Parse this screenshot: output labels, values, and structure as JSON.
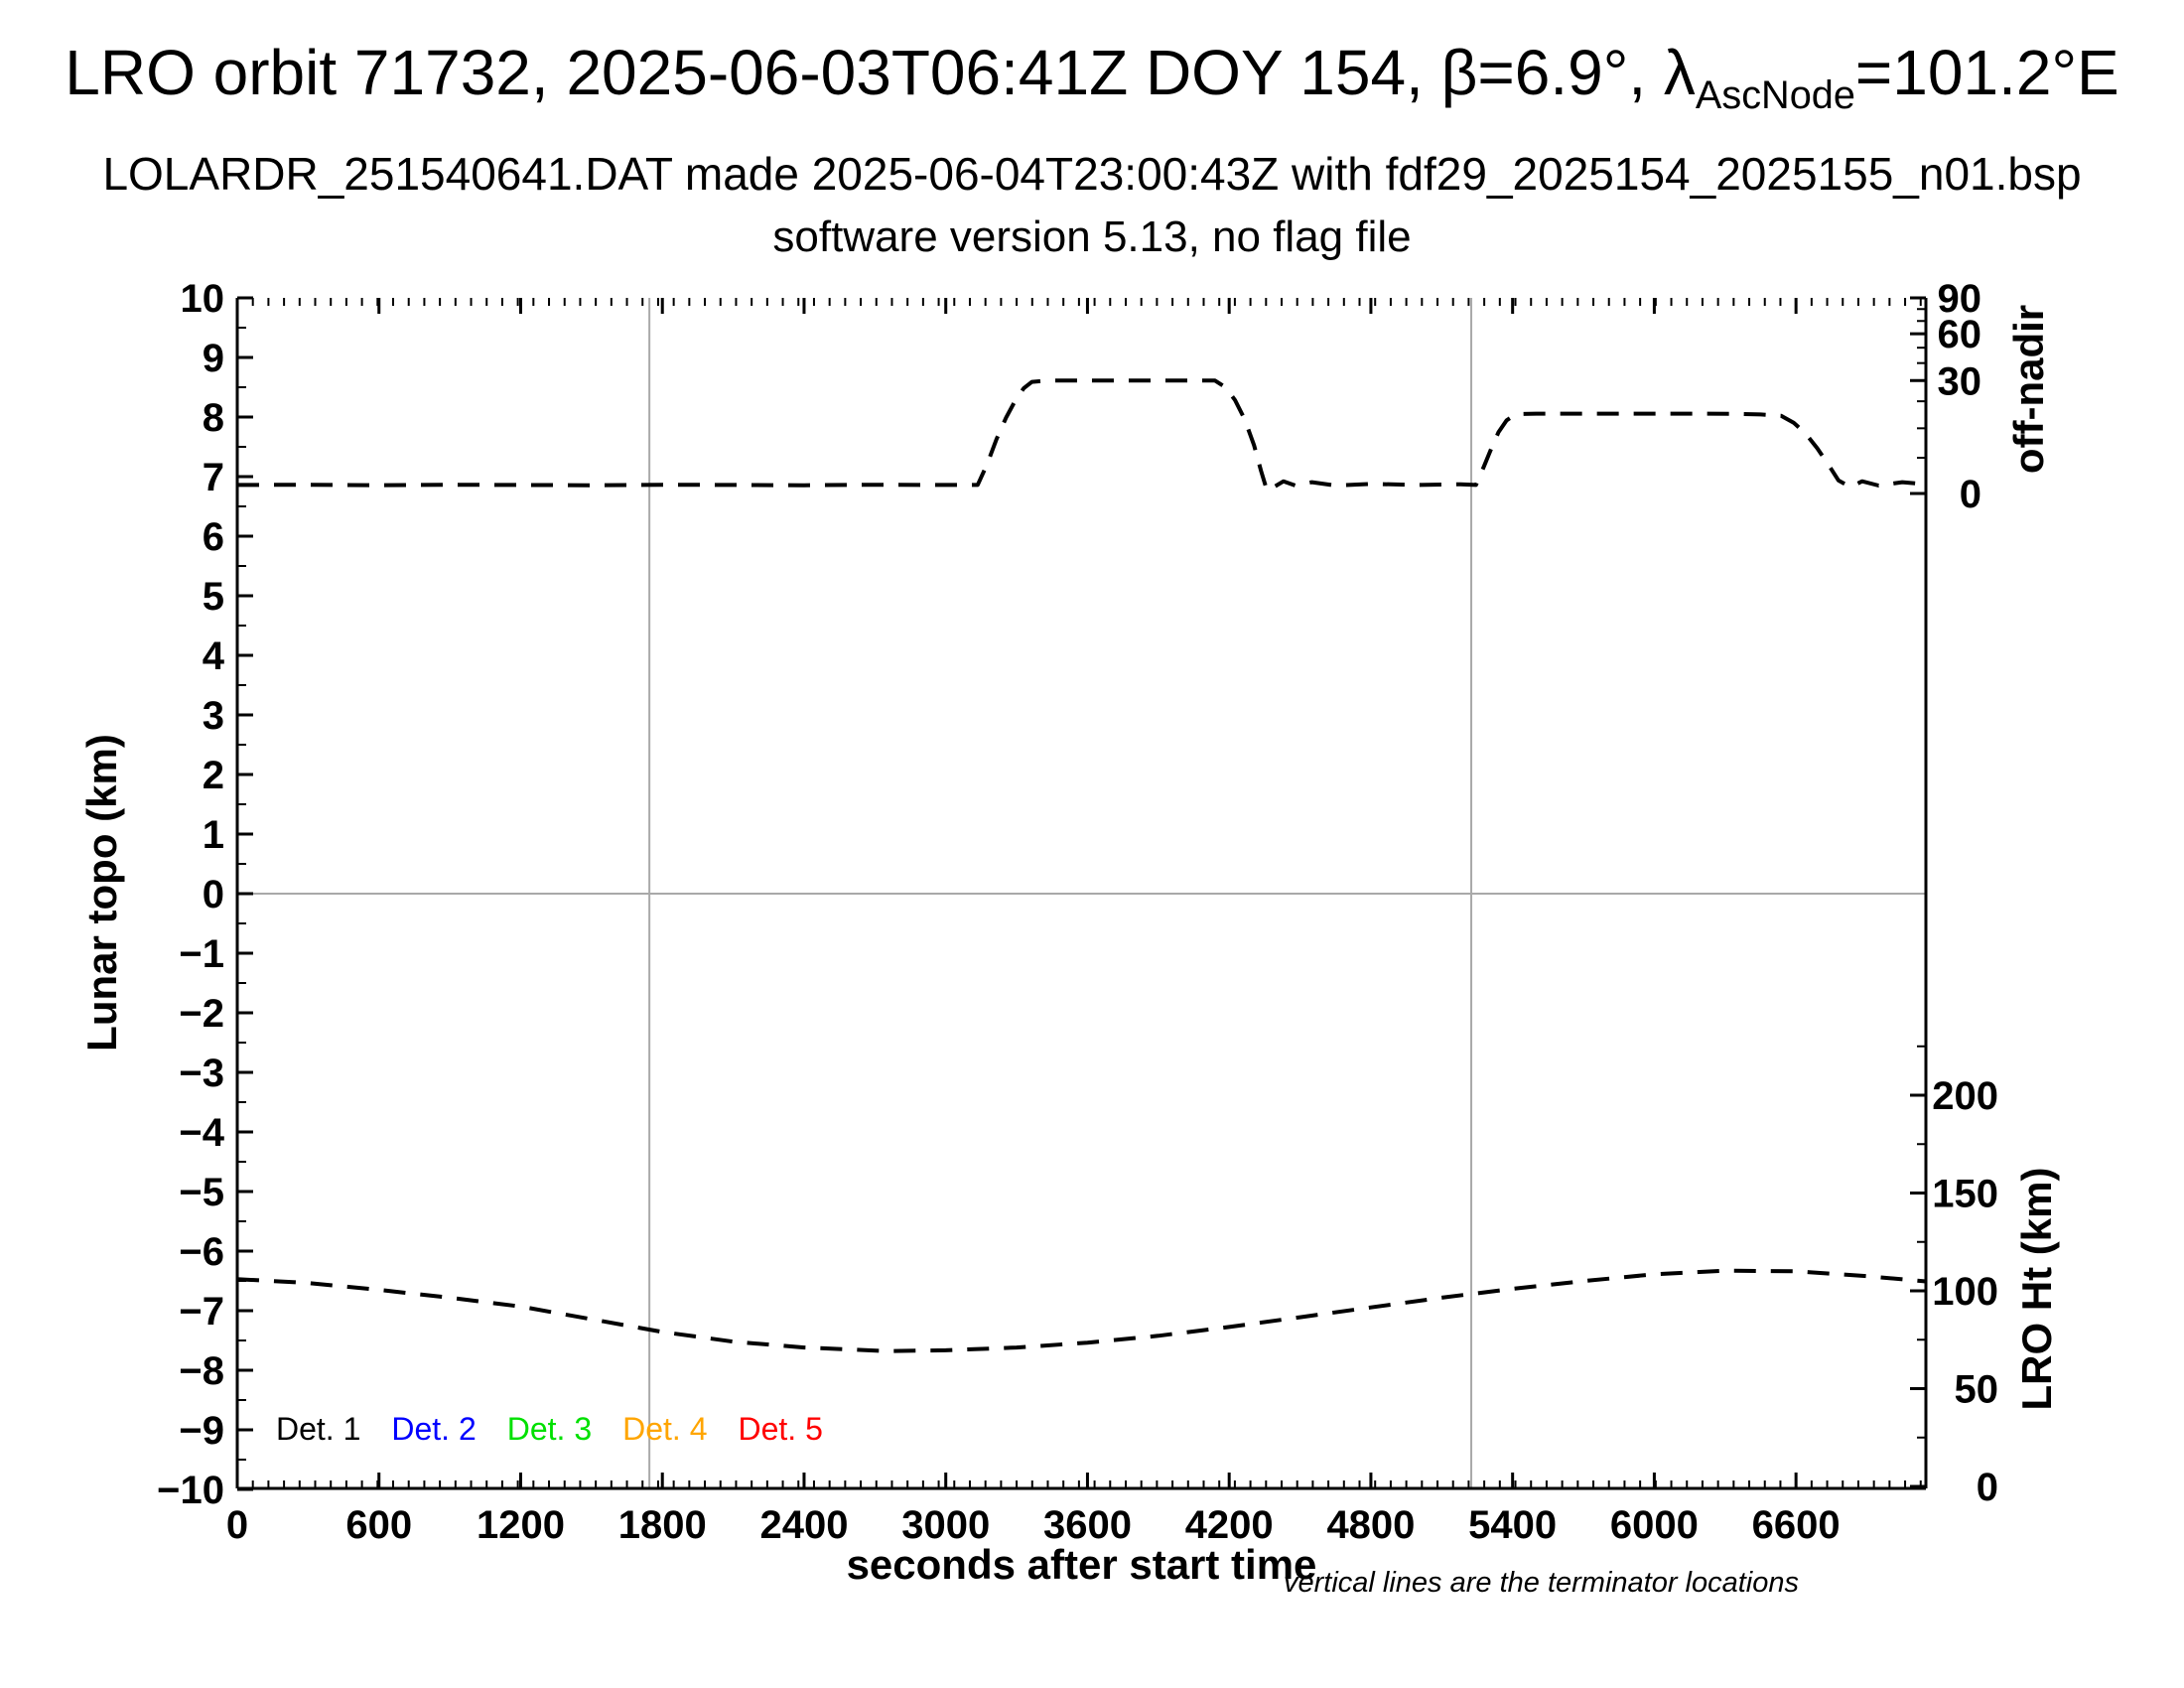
{
  "header": {
    "title_prefix": "LRO orbit 71732, 2025-06-03T06:41Z DOY 154, β=6.9°, λ",
    "title_sub": "AscNode",
    "title_suffix": "=101.2°E",
    "subtitle1": "LOLARDR_251540641.DAT made 2025-06-04T23:00:43Z with fdf29_2025154_2025155_n01.bsp",
    "subtitle2": "software version 5.13, no flag file"
  },
  "axes": {
    "x": {
      "label": "seconds after start time",
      "tick_values": [
        0,
        600,
        1200,
        1800,
        2400,
        3000,
        3600,
        4200,
        4800,
        5400,
        6000,
        6600
      ],
      "minor_step": 66,
      "min": 0,
      "max": 7150
    },
    "y_left": {
      "label": "Lunar topo (km)",
      "min": -10,
      "max": 10,
      "major_step": 1,
      "minor_step": 0.5
    },
    "y_right_top": {
      "label": "off-nadir",
      "tick_values": [
        90,
        60,
        30,
        0
      ],
      "minor_values": [
        3,
        10,
        20,
        40,
        50,
        70,
        80
      ],
      "scale": "sqrt-angle",
      "units": "degrees"
    },
    "y_right_bottom": {
      "label": "LRO Ht (km)",
      "tick_values": [
        200,
        150,
        100,
        50,
        0
      ],
      "minor_step": 25,
      "minor_max": 225
    }
  },
  "legend": {
    "entries": [
      {
        "label": "Det. 1",
        "color": "#000000"
      },
      {
        "label": "Det. 2",
        "color": "#0000ff"
      },
      {
        "label": "Det. 3",
        "color": "#00e000"
      },
      {
        "label": "Det. 4",
        "color": "#ffa500"
      },
      {
        "label": "Det. 5",
        "color": "#ff0000"
      }
    ]
  },
  "note": "vertical lines are the terminator locations",
  "terminator_lines_sec": [
    1745,
    5225
  ],
  "zero_topo_line_km": 0,
  "colors": {
    "grid_gray": "#a9a9a9",
    "curve": "#000000"
  },
  "chart_data": {
    "type": "line",
    "title": "LRO orbit 71732, 2025-06-03T06:41Z DOY 154, β=6.9°, λAscNode=101.2°E",
    "xlabel": "seconds after start time",
    "x_range": [
      0,
      7150
    ],
    "y_left_range_km": [
      -10,
      10
    ],
    "y_right_top_scale": "position proportional to sqrt(angle/90), 0 at 6.68 km topo level, 90 at top",
    "y_right_bottom_scale": "linear, 0 km at plot bottom, ~2px/km",
    "grid": "off",
    "legend_position": "bottom-left inside plot",
    "series": [
      {
        "name": "spacecraft off-nadir angle (deg, right top axis)",
        "style": "dashed",
        "color": "#000000",
        "points": [
          [
            0,
            0.17
          ],
          [
            300,
            0.18
          ],
          [
            600,
            0.16
          ],
          [
            900,
            0.18
          ],
          [
            1200,
            0.17
          ],
          [
            1500,
            0.16
          ],
          [
            1800,
            0.18
          ],
          [
            2100,
            0.17
          ],
          [
            2400,
            0.16
          ],
          [
            2700,
            0.18
          ],
          [
            3000,
            0.17
          ],
          [
            3135,
            0.17
          ],
          [
            3175,
            2
          ],
          [
            3215,
            7
          ],
          [
            3255,
            13.5
          ],
          [
            3295,
            20.5
          ],
          [
            3330,
            26
          ],
          [
            3365,
            29.3
          ],
          [
            3430,
            30
          ],
          [
            3600,
            30
          ],
          [
            3800,
            30
          ],
          [
            4000,
            30
          ],
          [
            4140,
            30
          ],
          [
            4185,
            26.5
          ],
          [
            4225,
            20.5
          ],
          [
            4265,
            13
          ],
          [
            4305,
            5.5
          ],
          [
            4335,
            1.2
          ],
          [
            4360,
            0.02
          ],
          [
            4390,
            0.1
          ],
          [
            4430,
            0.35
          ],
          [
            4480,
            0.15
          ],
          [
            4550,
            0.3
          ],
          [
            4650,
            0.15
          ],
          [
            4800,
            0.22
          ],
          [
            5000,
            0.17
          ],
          [
            5180,
            0.2
          ],
          [
            5245,
            0.17
          ],
          [
            5280,
            1.8
          ],
          [
            5310,
            4.8
          ],
          [
            5340,
            8.8
          ],
          [
            5375,
            12.6
          ],
          [
            5415,
            14.8
          ],
          [
            5500,
            15
          ],
          [
            5700,
            15
          ],
          [
            6000,
            15
          ],
          [
            6200,
            15
          ],
          [
            6350,
            14.9
          ],
          [
            6450,
            14.7
          ],
          [
            6537,
            14.2
          ],
          [
            6590,
            11.8
          ],
          [
            6640,
            8.5
          ],
          [
            6690,
            4.8
          ],
          [
            6740,
            1.8
          ],
          [
            6780,
            0.4
          ],
          [
            6830,
            0.1
          ],
          [
            6880,
            0.35
          ],
          [
            6950,
            0.15
          ],
          [
            7050,
            0.3
          ],
          [
            7150,
            0.2
          ]
        ]
      },
      {
        "name": "LRO height above surface (km, right bottom axis)",
        "style": "dashed",
        "color": "#000000",
        "points": [
          [
            0,
            106
          ],
          [
            300,
            104
          ],
          [
            600,
            100.5
          ],
          [
            900,
            96.5
          ],
          [
            1200,
            92
          ],
          [
            1500,
            85.5
          ],
          [
            1800,
            79
          ],
          [
            2100,
            74
          ],
          [
            2400,
            71
          ],
          [
            2750,
            69.2
          ],
          [
            3000,
            69.6
          ],
          [
            3300,
            71
          ],
          [
            3600,
            73.5
          ],
          [
            3900,
            77
          ],
          [
            4200,
            81.5
          ],
          [
            4500,
            86.5
          ],
          [
            4800,
            91.5
          ],
          [
            5100,
            96.5
          ],
          [
            5400,
            101
          ],
          [
            5700,
            105
          ],
          [
            6000,
            108.5
          ],
          [
            6300,
            110.3
          ],
          [
            6600,
            110
          ],
          [
            6900,
            107.5
          ],
          [
            7150,
            104.8
          ]
        ]
      }
    ]
  }
}
